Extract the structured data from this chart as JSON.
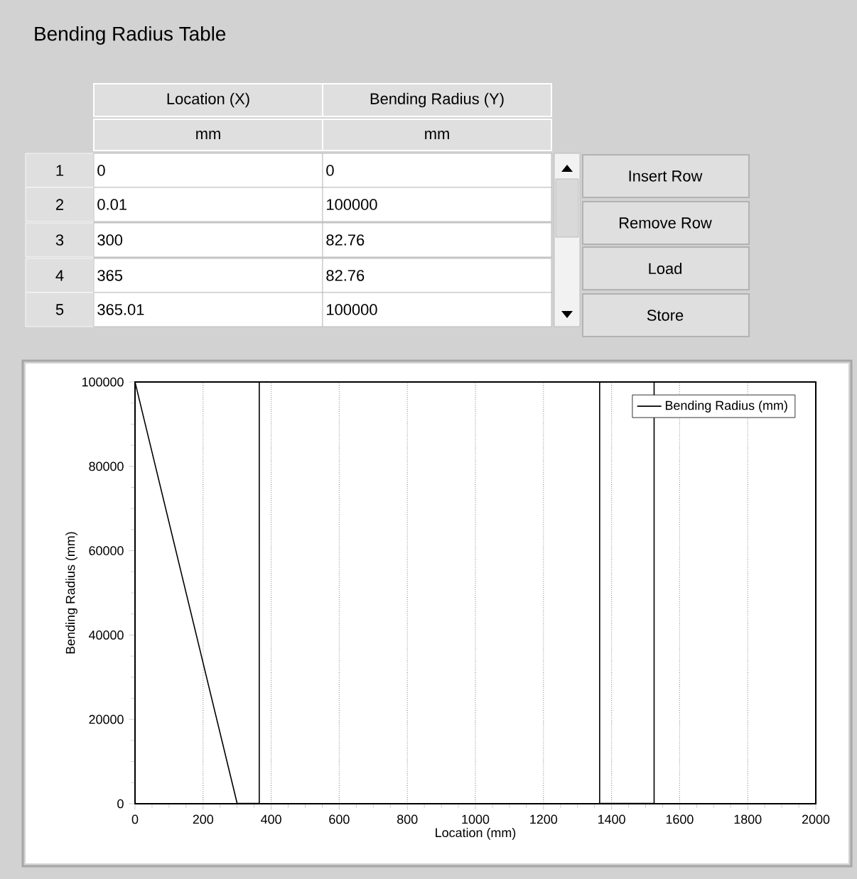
{
  "chart_data": {
    "type": "line",
    "title": "Bending Radius Table",
    "xlabel": "Location (mm)",
    "ylabel": "Bending Radius (mm)",
    "series": [
      {
        "name": "Bending Radius (mm)",
        "color": "#000000",
        "x": [
          0,
          0.01,
          300,
          365,
          365.01,
          1364.99,
          1365,
          1525,
          1525.01,
          2000
        ],
        "values": [
          0,
          100000,
          82.76,
          82.76,
          100000,
          100000,
          82.76,
          82.76,
          100000,
          100000
        ]
      }
    ],
    "xlim": [
      0,
      2000
    ],
    "xticks": [
      0,
      200,
      400,
      600,
      800,
      1000,
      1200,
      1400,
      1600,
      1800,
      2000
    ],
    "ylim": [
      0,
      100000
    ],
    "yticks": [
      0,
      20000,
      40000,
      60000,
      80000,
      100000
    ],
    "grid": "x",
    "legend": "top right",
    "marker": "none",
    "line_style": "solid",
    "annotations": [
      "Location (X)",
      "Bending Radius (Y)",
      "mm",
      "mm",
      "1",
      "0",
      "0",
      "2",
      "0.01",
      "100000",
      "3",
      "300",
      "82.76",
      "4",
      "365",
      "82.76",
      "5",
      "365.01",
      "100000",
      "Insert Row",
      "Remove Row",
      "Load",
      "Store"
    ]
  }
}
